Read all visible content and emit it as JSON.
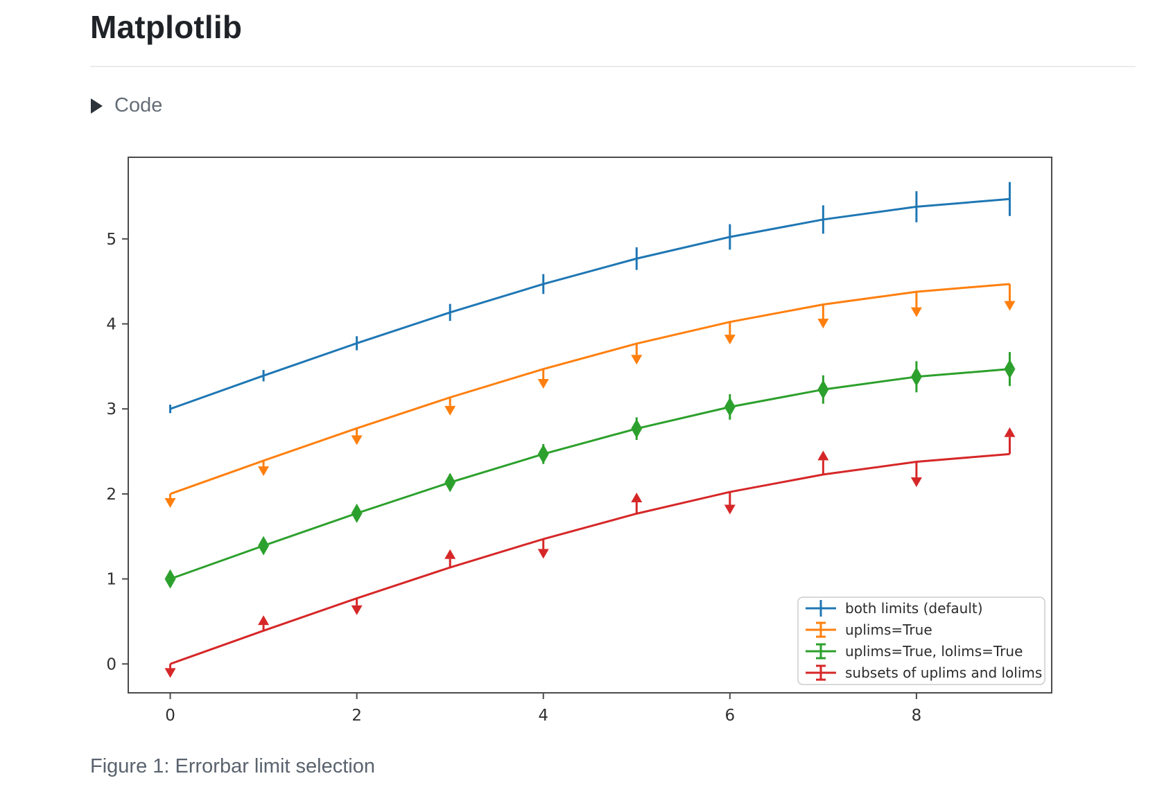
{
  "page": {
    "title": "Matplotlib",
    "code_toggle_label": "Code",
    "caption": "Figure 1: Errorbar limit selection"
  },
  "chart_data": {
    "type": "line",
    "title": "",
    "xlabel": "",
    "ylabel": "",
    "x": [
      0,
      1,
      2,
      3,
      4,
      5,
      6,
      7,
      8,
      9
    ],
    "xticks": [
      0,
      2,
      4,
      6,
      8
    ],
    "yticks": [
      0,
      1,
      2,
      3,
      4,
      5
    ],
    "xlim": [
      -0.45,
      9.45
    ],
    "ylim": [
      -0.34,
      5.96
    ],
    "grid": false,
    "legend_position": "lower right",
    "yerr": [
      0.05,
      0.067,
      0.083,
      0.1,
      0.117,
      0.133,
      0.15,
      0.167,
      0.183,
      0.2
    ],
    "series": [
      {
        "name": "both limits (default)",
        "color": "#1f77b4",
        "limit_style": "bars",
        "values": [
          3.0,
          3.391,
          3.772,
          4.135,
          4.469,
          4.768,
          5.023,
          5.228,
          5.378,
          5.469
        ]
      },
      {
        "name": "uplims=True",
        "color": "#ff7f0e",
        "limit_style": "uplims",
        "values": [
          2.0,
          2.391,
          2.772,
          3.135,
          3.469,
          3.768,
          4.023,
          4.228,
          4.378,
          4.469
        ]
      },
      {
        "name": "uplims=True, lolims=True",
        "color": "#2ca02c",
        "limit_style": "uplims+lolims",
        "values": [
          1.0,
          1.391,
          1.772,
          2.135,
          2.469,
          2.768,
          3.023,
          3.228,
          3.378,
          3.469
        ]
      },
      {
        "name": "subsets of uplims and lolims",
        "color": "#d62728",
        "limit_style": "alternating",
        "uplims": [
          true,
          false,
          true,
          false,
          true,
          false,
          true,
          false,
          true,
          false
        ],
        "lolims": [
          false,
          true,
          false,
          true,
          false,
          true,
          false,
          true,
          false,
          true
        ],
        "values": [
          0.0,
          0.391,
          0.772,
          1.135,
          1.469,
          1.768,
          2.023,
          2.228,
          2.378,
          2.469
        ]
      }
    ],
    "axis_color": "#4a4a4a",
    "tick_label_color": "#303030",
    "legend_border_color": "#cccccc",
    "legend_text_color": "#2b2b2b"
  }
}
